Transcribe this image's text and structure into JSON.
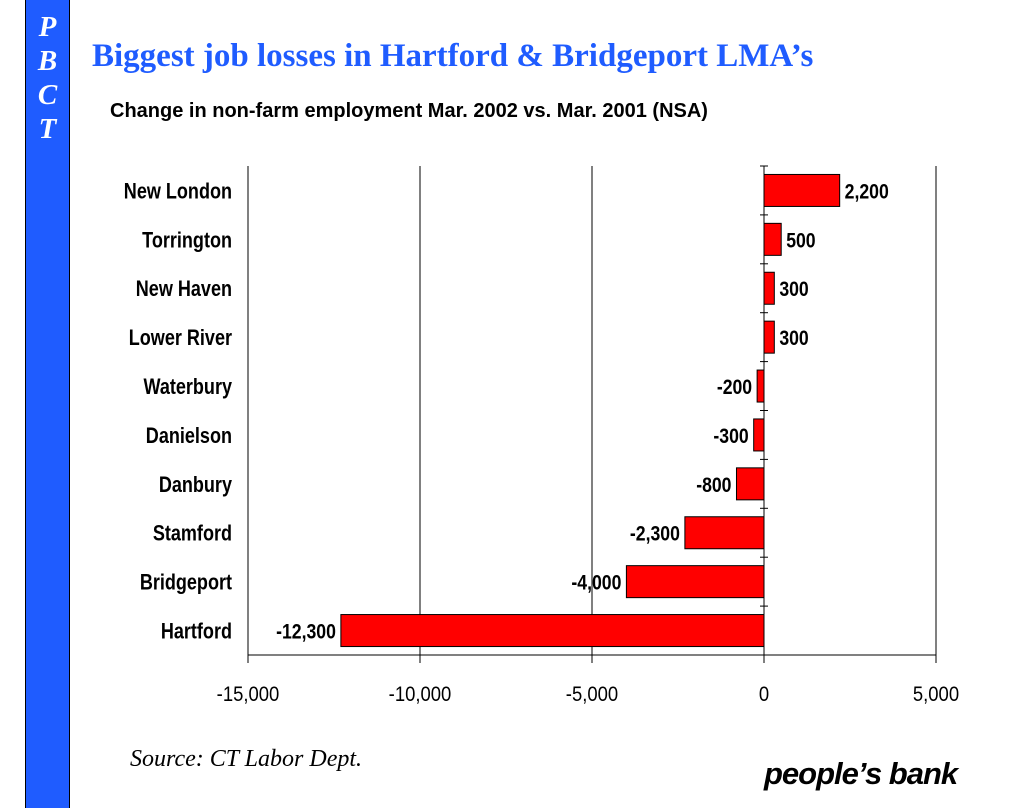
{
  "sidebar": {
    "letters": [
      "P",
      "B",
      "C",
      "T"
    ]
  },
  "title": "Biggest job losses in Hartford & Bridgeport LMA’s",
  "subtitle": "Change in non-farm employment Mar. 2002 vs. Mar. 2001 (NSA)",
  "source": "Source: CT Labor Dept.",
  "logo": "people’s bank",
  "colors": {
    "bar": "#ff0000",
    "title": "#1f5cff",
    "band": "#1f5cff"
  },
  "chart_data": {
    "type": "bar",
    "orientation": "horizontal",
    "categories": [
      "New London",
      "Torrington",
      "New Haven",
      "Lower River",
      "Waterbury",
      "Danielson",
      "Danbury",
      "Stamford",
      "Bridgeport",
      "Hartford"
    ],
    "values": [
      2200,
      500,
      300,
      300,
      -200,
      -300,
      -800,
      -2300,
      -4000,
      -12300
    ],
    "data_labels": [
      "2,200",
      "500",
      "300",
      "300",
      "-200",
      "-300",
      "-800",
      "-2,300",
      "-4,000",
      "-12,300"
    ],
    "xlim": [
      -15000,
      5000
    ],
    "xticks": [
      -15000,
      -10000,
      -5000,
      0,
      5000
    ],
    "xtick_labels": [
      "-15,000",
      "-10,000",
      "-5,000",
      "0",
      "5,000"
    ],
    "gridlines": "vertical",
    "legend": "none",
    "title": "",
    "xlabel": "",
    "ylabel": ""
  }
}
